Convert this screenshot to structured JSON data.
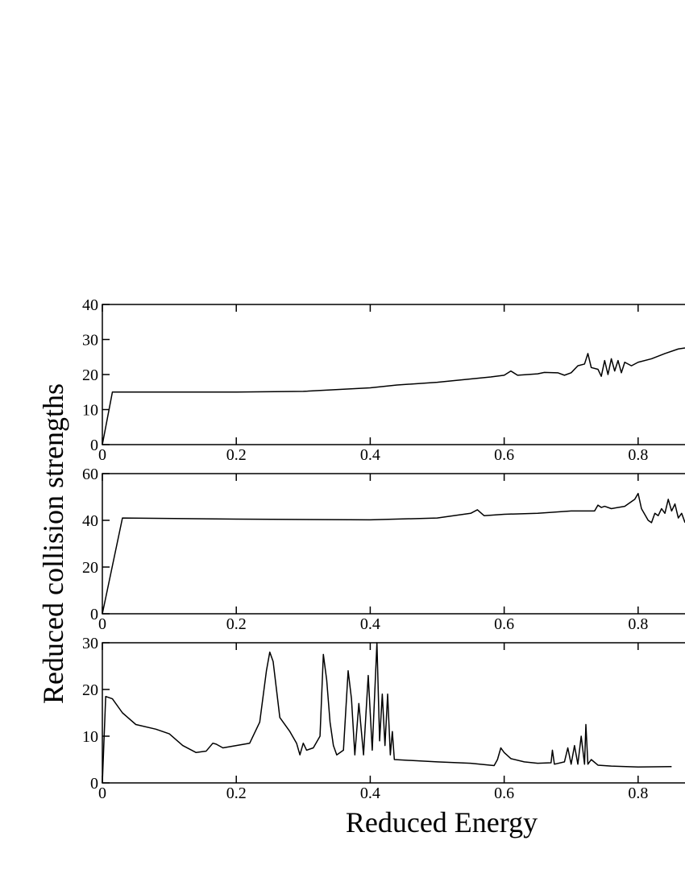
{
  "chart_data": [
    {
      "type": "line",
      "color": "#000000",
      "x": [
        0,
        0.015,
        0.1,
        0.2,
        0.3,
        0.4,
        0.44,
        0.5,
        0.58,
        0.6,
        0.61,
        0.62,
        0.65,
        0.66,
        0.68,
        0.69,
        0.7,
        0.71,
        0.72,
        0.725,
        0.73,
        0.74,
        0.745,
        0.75,
        0.755,
        0.76,
        0.765,
        0.77,
        0.775,
        0.78,
        0.79,
        0.8,
        0.82,
        0.84,
        0.86,
        0.87
      ],
      "values": [
        0,
        15,
        15,
        15,
        15.2,
        16.2,
        17,
        17.8,
        19.3,
        19.8,
        21,
        19.8,
        20.2,
        20.6,
        20.5,
        19.8,
        20.5,
        22.5,
        23,
        26,
        22,
        21.5,
        19.5,
        24,
        20,
        24.5,
        21,
        24,
        20.5,
        23.5,
        22.5,
        23.5,
        24.5,
        26,
        27.3,
        27.6
      ],
      "xlim": [
        0,
        0.87
      ],
      "xticks": [
        0,
        0.2,
        0.4,
        0.6,
        0.8
      ],
      "ylim": [
        0,
        40
      ],
      "yticks": [
        0,
        10,
        20,
        30,
        40
      ]
    },
    {
      "type": "line",
      "color": "#000000",
      "y_label": "Reduced collision strengths",
      "x": [
        0,
        0.03,
        0.2,
        0.4,
        0.5,
        0.55,
        0.56,
        0.57,
        0.6,
        0.65,
        0.7,
        0.735,
        0.74,
        0.745,
        0.75,
        0.76,
        0.78,
        0.795,
        0.8,
        0.805,
        0.815,
        0.82,
        0.825,
        0.83,
        0.835,
        0.84,
        0.845,
        0.85,
        0.855,
        0.86,
        0.865,
        0.87
      ],
      "values": [
        0,
        41,
        40.5,
        40.2,
        41,
        43,
        44.5,
        42,
        42.6,
        43,
        44,
        44,
        46.5,
        45.5,
        46,
        45,
        46,
        49,
        51.5,
        45,
        40,
        39,
        43,
        42,
        45,
        43,
        49,
        44,
        47,
        41,
        43,
        39
      ],
      "xlim": [
        0,
        0.87
      ],
      "xticks": [
        0,
        0.2,
        0.4,
        0.6,
        0.8
      ],
      "ylim": [
        0,
        60
      ],
      "yticks": [
        0,
        20,
        40,
        60
      ]
    },
    {
      "type": "line",
      "color": "#000000",
      "x_label": "Reduced Energy",
      "x": [
        0,
        0.005,
        0.015,
        0.03,
        0.05,
        0.08,
        0.1,
        0.12,
        0.14,
        0.155,
        0.165,
        0.17,
        0.18,
        0.2,
        0.22,
        0.235,
        0.245,
        0.25,
        0.255,
        0.26,
        0.265,
        0.28,
        0.29,
        0.295,
        0.3,
        0.305,
        0.315,
        0.325,
        0.33,
        0.335,
        0.34,
        0.345,
        0.35,
        0.36,
        0.367,
        0.372,
        0.377,
        0.383,
        0.39,
        0.397,
        0.403,
        0.41,
        0.414,
        0.418,
        0.422,
        0.426,
        0.43,
        0.433,
        0.436,
        0.5,
        0.55,
        0.585,
        0.59,
        0.595,
        0.6,
        0.61,
        0.63,
        0.65,
        0.67,
        0.672,
        0.675,
        0.69,
        0.695,
        0.7,
        0.705,
        0.71,
        0.715,
        0.72,
        0.722,
        0.725,
        0.73,
        0.74,
        0.76,
        0.8,
        0.85
      ],
      "values": [
        0,
        18.5,
        18,
        15,
        12.5,
        11.5,
        10.5,
        8,
        6.5,
        6.8,
        8.5,
        8.3,
        7.5,
        8,
        8.5,
        13,
        24,
        28,
        26,
        20,
        14,
        11,
        8.5,
        6,
        8.5,
        7,
        7.5,
        10,
        27.5,
        22,
        13,
        8,
        6,
        7,
        24,
        18,
        6,
        17,
        6,
        23,
        7,
        30,
        9,
        19,
        8,
        19,
        6,
        11,
        5,
        4.5,
        4.2,
        3.7,
        5,
        7.5,
        6.5,
        5.2,
        4.5,
        4.2,
        4.3,
        7,
        4,
        4.5,
        7.5,
        4,
        8,
        4,
        10,
        4,
        12.5,
        4,
        5,
        3.8,
        3.6,
        3.4,
        3.5
      ],
      "xlim": [
        0,
        0.87
      ],
      "xticks": [
        0,
        0.2,
        0.4,
        0.6,
        0.8
      ],
      "ylim": [
        0,
        30
      ],
      "yticks": [
        0,
        10,
        20,
        30
      ]
    }
  ]
}
